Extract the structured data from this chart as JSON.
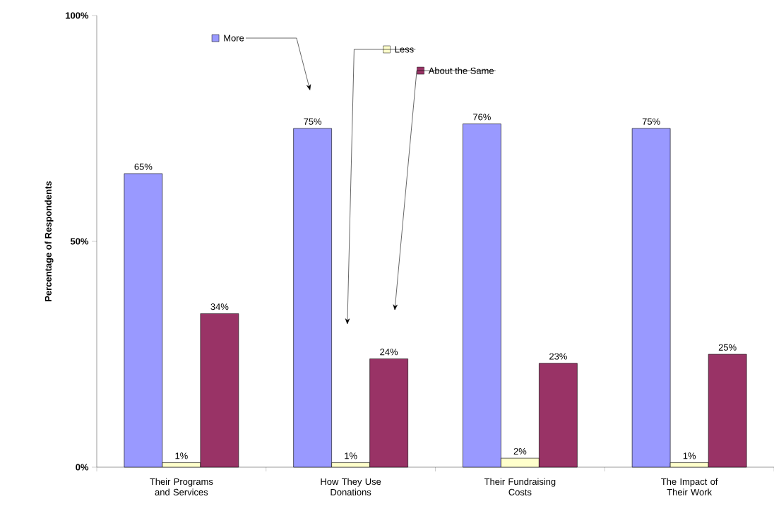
{
  "chart_data": {
    "type": "bar",
    "ylabel": "Percentage of Respondents",
    "categories": [
      "Their Programs and Services",
      "How They Use Donations",
      "Their Fundraising Costs",
      "The Impact of Their Work"
    ],
    "series": [
      {
        "name": "More",
        "color": "#9999ff",
        "values": [
          65,
          75,
          76,
          75
        ],
        "value_labels": [
          "65%",
          "75%",
          "76%",
          "75%"
        ]
      },
      {
        "name": "Less",
        "color": "#ffffcc",
        "values": [
          1,
          1,
          2,
          1
        ],
        "value_labels": [
          "1%",
          "1%",
          "2%",
          "1%"
        ]
      },
      {
        "name": "About the Same",
        "color": "#993366",
        "values": [
          34,
          24,
          23,
          25
        ],
        "value_labels": [
          "34%",
          "24%",
          "23%",
          "25%"
        ]
      }
    ],
    "ylim": [
      0,
      100
    ],
    "yticks": [
      {
        "value": 0,
        "label": "0%"
      },
      {
        "value": 50,
        "label": "50%"
      },
      {
        "value": 100,
        "label": "100%"
      }
    ],
    "legend": "top",
    "grid": false
  }
}
